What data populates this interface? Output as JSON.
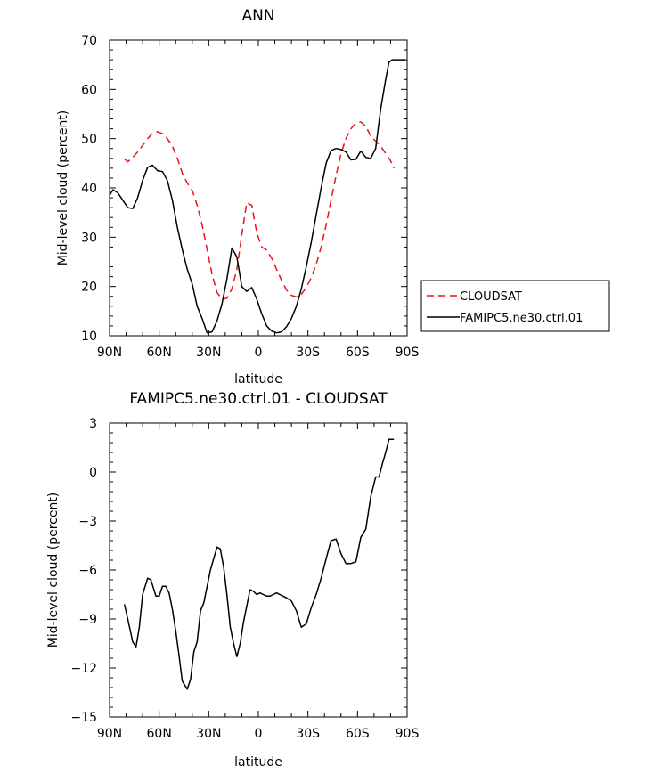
{
  "chart_data": [
    {
      "type": "line",
      "title": "ANN",
      "xlabel": "latitude",
      "ylabel": "Mid-level cloud (percent)",
      "xlim": [
        90,
        -90
      ],
      "ylim": [
        10,
        70
      ],
      "x_ticks": [
        90,
        60,
        30,
        0,
        -30,
        -60,
        -90
      ],
      "x_tick_labels": [
        "90N",
        "60N",
        "30N",
        "0",
        "30S",
        "60S",
        "90S"
      ],
      "y_ticks": [
        10,
        20,
        30,
        40,
        50,
        60,
        70
      ],
      "y_tick_labels": [
        "10",
        "20",
        "30",
        "40",
        "50",
        "60",
        "70"
      ],
      "legend_position": "right",
      "series": [
        {
          "name": "CLOUDSAT",
          "color": "#e8141a",
          "dash": true,
          "x": [
            81,
            79,
            76,
            73,
            70,
            67,
            64,
            61,
            58,
            55,
            52,
            49,
            46,
            43,
            40,
            37,
            34,
            31,
            28,
            25,
            22,
            19,
            16,
            13,
            10,
            7,
            4,
            1,
            -2,
            -5,
            -8,
            -11,
            -14,
            -17,
            -20,
            -23,
            -26,
            -29,
            -32,
            -35,
            -38,
            -41,
            -44,
            -47,
            -50,
            -53,
            -56,
            -59,
            -62,
            -65,
            -68,
            -71,
            -74,
            -77,
            -80,
            -82
          ],
          "y": [
            45.9,
            45.3,
            46.2,
            47.3,
            48.6,
            50.0,
            51.1,
            51.4,
            51.0,
            50.0,
            48.5,
            46.0,
            43.0,
            41.0,
            39.5,
            36.5,
            32.5,
            27.5,
            22.5,
            18.8,
            17.4,
            17.6,
            19.5,
            23.5,
            30.5,
            37.0,
            36.5,
            31.0,
            28.0,
            27.4,
            25.8,
            23.5,
            21.3,
            19.3,
            18.2,
            17.9,
            18.4,
            19.8,
            21.8,
            24.5,
            28.0,
            32.5,
            37.5,
            42.5,
            47.0,
            50.0,
            52.0,
            53.2,
            53.4,
            52.5,
            50.5,
            49.5,
            48.5,
            47.0,
            45.5,
            44.0
          ]
        },
        {
          "name": "FAMIPC5.ne30.ctrl.01",
          "color": "#000000",
          "dash": false,
          "x": [
            90,
            88,
            85,
            82,
            79,
            76,
            73,
            70,
            67,
            64,
            61,
            58,
            55,
            52,
            49,
            46,
            43,
            40,
            37,
            34,
            31,
            28,
            25,
            22,
            19,
            16,
            13,
            10,
            7,
            4,
            1,
            -2,
            -5,
            -8,
            -11,
            -14,
            -17,
            -20,
            -23,
            -26,
            -29,
            -32,
            -35,
            -38,
            -41,
            -44,
            -47,
            -50,
            -53,
            -56,
            -59,
            -62,
            -65,
            -68,
            -71,
            -74,
            -77,
            -79,
            -81,
            -83,
            -85,
            -87,
            -89
          ],
          "y": [
            38.5,
            39.6,
            39.0,
            37.5,
            36.0,
            35.8,
            38.0,
            41.5,
            44.2,
            44.6,
            43.5,
            43.3,
            41.5,
            37.5,
            32.0,
            27.5,
            23.5,
            20.5,
            16.0,
            13.5,
            10.6,
            10.8,
            13.0,
            16.5,
            21.5,
            27.8,
            26.0,
            20.0,
            19.0,
            19.8,
            17.5,
            14.5,
            12.0,
            11.0,
            10.6,
            10.8,
            11.8,
            13.5,
            16.0,
            19.5,
            24.0,
            29.0,
            34.5,
            40.0,
            45.0,
            47.6,
            48.0,
            47.8,
            47.3,
            45.7,
            45.8,
            47.5,
            46.2,
            46.0,
            48.0,
            56.0,
            62.0,
            65.5,
            66.0,
            66.0,
            66.0,
            66.0,
            66.0
          ]
        }
      ]
    },
    {
      "type": "line",
      "title": "FAMIPC5.ne30.ctrl.01 - CLOUDSAT",
      "xlabel": "latitude",
      "ylabel": "Mid-level cloud (percent)",
      "xlim": [
        90,
        -90
      ],
      "ylim": [
        -15,
        3
      ],
      "x_ticks": [
        90,
        60,
        30,
        0,
        -30,
        -60,
        -90
      ],
      "x_tick_labels": [
        "90N",
        "60N",
        "30N",
        "0",
        "30S",
        "60S",
        "90S"
      ],
      "y_ticks": [
        -15,
        -12,
        -9,
        -6,
        -3,
        0,
        3
      ],
      "y_tick_labels": [
        "−15",
        "−12",
        "−9",
        "−6",
        "−3",
        "0",
        "3"
      ],
      "series": [
        {
          "name": "FAMIPC5.ne30.ctrl.01 - CLOUDSAT",
          "color": "#000000",
          "dash": false,
          "x": [
            81,
            79,
            76,
            74,
            72,
            70,
            67,
            65,
            62,
            60,
            58,
            56,
            54,
            52,
            50,
            48,
            46,
            43,
            41,
            39,
            37,
            35,
            33,
            31,
            29,
            27,
            25,
            23,
            21,
            19,
            17,
            15,
            13,
            11,
            9,
            7,
            5,
            3,
            1,
            -1,
            -3,
            -5,
            -7,
            -9,
            -11,
            -13,
            -15,
            -17,
            -20,
            -23,
            -26,
            -29,
            -32,
            -35,
            -38,
            -41,
            -44,
            -47,
            -50,
            -53,
            -56,
            -59,
            -62,
            -65,
            -68,
            -71,
            -73,
            -75,
            -77,
            -79,
            -80,
            -81,
            -82
          ],
          "y": [
            -8.1,
            -9.0,
            -10.4,
            -10.7,
            -9.5,
            -7.5,
            -6.5,
            -6.6,
            -7.6,
            -7.6,
            -7.0,
            -7.0,
            -7.4,
            -8.4,
            -9.7,
            -11.2,
            -12.8,
            -13.3,
            -12.7,
            -11.0,
            -10.4,
            -8.5,
            -8.0,
            -7.0,
            -6.0,
            -5.3,
            -4.6,
            -4.7,
            -5.8,
            -7.5,
            -9.5,
            -10.5,
            -11.3,
            -10.5,
            -9.2,
            -8.2,
            -7.2,
            -7.3,
            -7.5,
            -7.4,
            -7.5,
            -7.6,
            -7.6,
            -7.5,
            -7.4,
            -7.5,
            -7.6,
            -7.7,
            -7.9,
            -8.5,
            -9.5,
            -9.3,
            -8.3,
            -7.5,
            -6.5,
            -5.3,
            -4.2,
            -4.1,
            -5.0,
            -5.6,
            -5.6,
            -5.5,
            -4.0,
            -3.5,
            -1.5,
            -0.3,
            -0.3,
            0.5,
            1.2,
            2.0,
            2.0,
            2.0,
            2.0
          ]
        }
      ]
    }
  ]
}
